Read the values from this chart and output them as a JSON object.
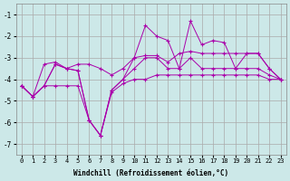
{
  "xlabel": "Windchill (Refroidissement éolien,°C)",
  "x": [
    0,
    1,
    2,
    3,
    4,
    5,
    6,
    7,
    8,
    9,
    10,
    11,
    12,
    13,
    14,
    15,
    16,
    17,
    18,
    19,
    20,
    21,
    22,
    23
  ],
  "line_spiky": [
    -4.3,
    -4.8,
    -4.3,
    -3.3,
    -3.5,
    -3.6,
    -5.9,
    -6.6,
    -4.5,
    -4.0,
    -3.0,
    -1.5,
    -2.0,
    -2.2,
    -3.5,
    -1.3,
    -2.4,
    -2.2,
    -2.3,
    -3.5,
    -2.8,
    -2.8,
    -3.5,
    -4.0
  ],
  "line_upper": [
    -4.3,
    -4.8,
    -3.3,
    -3.2,
    -3.5,
    -3.3,
    -3.3,
    -3.5,
    -3.8,
    -3.5,
    -3.0,
    -2.9,
    -2.9,
    -3.2,
    -2.8,
    -2.7,
    -2.8,
    -2.8,
    -2.8,
    -2.8,
    -2.8,
    -2.8,
    -3.5,
    -4.0
  ],
  "line_mid": [
    -4.3,
    -4.8,
    -4.3,
    -3.3,
    -3.5,
    -3.6,
    -5.9,
    -6.6,
    -4.5,
    -4.0,
    -3.5,
    -3.0,
    -3.0,
    -3.5,
    -3.5,
    -3.0,
    -3.5,
    -3.5,
    -3.5,
    -3.5,
    -3.5,
    -3.5,
    -3.8,
    -4.0
  ],
  "line_lower": [
    -4.3,
    -4.8,
    -4.3,
    -4.3,
    -4.3,
    -4.3,
    -5.9,
    -6.6,
    -4.6,
    -4.2,
    -4.0,
    -4.0,
    -3.8,
    -3.8,
    -3.8,
    -3.8,
    -3.8,
    -3.8,
    -3.8,
    -3.8,
    -3.8,
    -3.8,
    -4.0,
    -4.0
  ],
  "line_color": "#aa00aa",
  "bg_color": "#cce8e8",
  "grid_color": "#aaaaaa",
  "ylim": [
    -7.5,
    -0.5
  ],
  "xlim": [
    -0.5,
    23.5
  ],
  "yticks": [
    -7,
    -6,
    -5,
    -4,
    -3,
    -2,
    -1
  ],
  "xticks": [
    0,
    1,
    2,
    3,
    4,
    5,
    6,
    7,
    8,
    9,
    10,
    11,
    12,
    13,
    14,
    15,
    16,
    17,
    18,
    19,
    20,
    21,
    22,
    23
  ]
}
